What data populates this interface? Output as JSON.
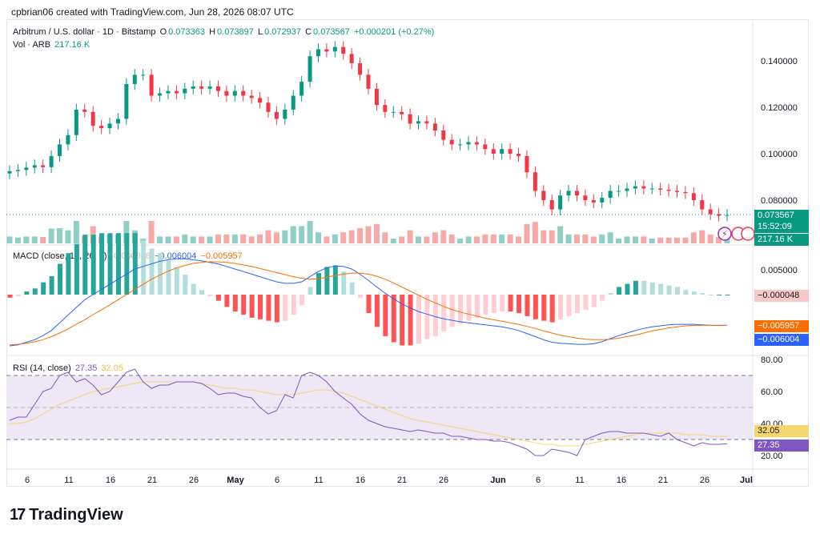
{
  "header": {
    "credit": "cpbrian06 created with TradingView.com, Jun 28, 2026 08:07 UTC"
  },
  "legend": {
    "symbol": "Arbitrum / U.S. dollar · 1D · Bitstamp",
    "open_label": "O",
    "open": "0.073363",
    "high_label": "H",
    "high": "0.073897",
    "low_label": "L",
    "low": "0.072937",
    "close_label": "C",
    "close": "0.073567",
    "change": "+0.000201 (+0.27%)",
    "vol_label": "Vol · ARB",
    "vol_value": "217.16 K"
  },
  "macd_legend": {
    "title": "MACD (close, 12, 26, 9)",
    "hist": "-0.000048",
    "macd": "−0.006004",
    "signal": "−0.005957"
  },
  "rsi_legend": {
    "title": "RSI (14, close)",
    "rsi": "27.35",
    "ma": "32.05"
  },
  "tags": {
    "price": "0.073567",
    "countdown": "15:52:09",
    "volume": "217.16 K",
    "macd_hist": "−0.000048",
    "macd_signal": "−0.005957",
    "macd_line": "−0.006004",
    "rsi_ma": "32.05",
    "rsi": "27.35"
  },
  "colors": {
    "up": "#089981",
    "down": "#f23645",
    "vol_up": "#8fcfc5",
    "vol_down": "#f7a9a7",
    "macd_line": "#2962ff",
    "signal_line": "#ff6d00",
    "rsi_line": "#7e57c2",
    "rsi_ma": "#f5d76e",
    "rsi_band": "#ede7f6"
  },
  "branding": {
    "logo": "17",
    "name": "TradingView"
  },
  "chart_data": {
    "type": "candlestick",
    "title": "Arbitrum / U.S. dollar · 1D · Bitstamp",
    "y_ticks": [
      "0.140000",
      "0.120000",
      "0.100000",
      "0.080000"
    ],
    "x_ticks": [
      "6",
      "11",
      "16",
      "21",
      "26",
      "May",
      "6",
      "11",
      "16",
      "21",
      "26",
      "Jun",
      "6",
      "11",
      "16",
      "21",
      "26",
      "Jul"
    ],
    "ohlc_close": [
      0.0925,
      0.093,
      0.094,
      0.095,
      0.0942,
      0.099,
      0.104,
      0.108,
      0.119,
      0.118,
      0.112,
      0.111,
      0.113,
      0.115,
      0.13,
      0.134,
      0.134,
      0.125,
      0.126,
      0.127,
      0.126,
      0.128,
      0.129,
      0.128,
      0.129,
      0.127,
      0.125,
      0.127,
      0.125,
      0.124,
      0.122,
      0.118,
      0.115,
      0.119,
      0.125,
      0.131,
      0.142,
      0.145,
      0.144,
      0.146,
      0.143,
      0.139,
      0.134,
      0.128,
      0.121,
      0.118,
      0.118,
      0.117,
      0.113,
      0.114,
      0.113,
      0.11,
      0.106,
      0.104,
      0.104,
      0.105,
      0.104,
      0.102,
      0.1,
      0.102,
      0.1,
      0.099,
      0.092,
      0.084,
      0.08,
      0.076,
      0.082,
      0.084,
      0.082,
      0.08,
      0.079,
      0.081,
      0.084,
      0.084,
      0.085,
      0.086,
      0.085,
      0.085,
      0.0845,
      0.084,
      0.0835,
      0.083,
      0.08,
      0.076,
      0.074,
      0.0733,
      0.0736
    ],
    "macd": [
      -0.01,
      -0.0098,
      -0.0093,
      -0.0088,
      -0.008,
      -0.007,
      -0.0055,
      -0.004,
      -0.0025,
      -0.001,
      0.0,
      0.001,
      0.002,
      0.003,
      0.004,
      0.005,
      0.0055,
      0.006,
      0.0065,
      0.0068,
      0.007,
      0.007,
      0.0068,
      0.0066,
      0.0063,
      0.006,
      0.0055,
      0.005,
      0.0045,
      0.004,
      0.0035,
      0.003,
      0.0025,
      0.0022,
      0.0022,
      0.0025,
      0.0035,
      0.0045,
      0.0052,
      0.0056,
      0.0055,
      0.005,
      0.004,
      0.0028,
      0.0015,
      0.0003,
      -0.0008,
      -0.0018,
      -0.0026,
      -0.0033,
      -0.0038,
      -0.0043,
      -0.0047,
      -0.005,
      -0.0053,
      -0.0055,
      -0.0057,
      -0.0059,
      -0.0061,
      -0.0063,
      -0.0066,
      -0.007,
      -0.0076,
      -0.0082,
      -0.0088,
      -0.0093,
      -0.0095,
      -0.0096,
      -0.0097,
      -0.0097,
      -0.0096,
      -0.0092,
      -0.0086,
      -0.008,
      -0.0075,
      -0.007,
      -0.0066,
      -0.0063,
      -0.0061,
      -0.0059,
      -0.0058,
      -0.0058,
      -0.0058,
      -0.0059,
      -0.006,
      -0.006,
      -0.006
    ],
    "signal": [
      -0.0098,
      -0.0097,
      -0.0095,
      -0.0092,
      -0.0088,
      -0.0082,
      -0.0075,
      -0.0067,
      -0.0058,
      -0.0049,
      -0.0039,
      -0.003,
      -0.002,
      -0.001,
      0.0,
      0.001,
      0.002,
      0.003,
      0.0038,
      0.0046,
      0.0052,
      0.0057,
      0.0061,
      0.0063,
      0.0064,
      0.0064,
      0.0063,
      0.0061,
      0.0058,
      0.0055,
      0.0051,
      0.0047,
      0.0043,
      0.0039,
      0.0035,
      0.0032,
      0.003,
      0.0031,
      0.0034,
      0.0037,
      0.004,
      0.0042,
      0.0042,
      0.004,
      0.0036,
      0.003,
      0.0023,
      0.0015,
      0.0007,
      -0.0001,
      -0.0009,
      -0.0016,
      -0.0023,
      -0.0029,
      -0.0034,
      -0.0038,
      -0.0042,
      -0.0046,
      -0.0049,
      -0.0052,
      -0.0055,
      -0.0058,
      -0.0062,
      -0.0066,
      -0.0071,
      -0.0075,
      -0.0079,
      -0.0082,
      -0.0085,
      -0.0087,
      -0.0088,
      -0.0088,
      -0.0087,
      -0.0085,
      -0.0082,
      -0.0079,
      -0.0075,
      -0.0071,
      -0.0068,
      -0.0065,
      -0.0063,
      -0.0061,
      -0.006,
      -0.006,
      -0.006,
      -0.006,
      -0.006
    ],
    "rsi_ticks": [
      "80.00",
      "60.00",
      "40.00",
      "20.00"
    ],
    "rsi": [
      42,
      44,
      44,
      52,
      60,
      62,
      70,
      72,
      66,
      68,
      64,
      58,
      60,
      66,
      72,
      74,
      66,
      62,
      64,
      64,
      66,
      66,
      66,
      65,
      62,
      58,
      59,
      59,
      57,
      56,
      50,
      46,
      48,
      58,
      56,
      70,
      72,
      70,
      66,
      60,
      56,
      52,
      46,
      42,
      40,
      38,
      37,
      36,
      35,
      36,
      35,
      34,
      34,
      32,
      32,
      31,
      30,
      30,
      29,
      29,
      28,
      26,
      24,
      20,
      20,
      24,
      23,
      22,
      20,
      30,
      32,
      34,
      35,
      35,
      34,
      34,
      34,
      33,
      32,
      34,
      30,
      28,
      26,
      28,
      27,
      27,
      27.35
    ],
    "rsi_ma": [
      40,
      40,
      41,
      43,
      46,
      49,
      52,
      54,
      56,
      58,
      60,
      61,
      62,
      63,
      64,
      65,
      66,
      66,
      66,
      66,
      66,
      66,
      66,
      65,
      64,
      63,
      62,
      62,
      61,
      61,
      60,
      59,
      58,
      58,
      58,
      59,
      60,
      61,
      61,
      60,
      59,
      57,
      55,
      53,
      51,
      49,
      47,
      45,
      43,
      42,
      41,
      40,
      39,
      38,
      37,
      36,
      35,
      34,
      33,
      32,
      31,
      30,
      29,
      28,
      27,
      27,
      26,
      26,
      26,
      27,
      28,
      29,
      30,
      31,
      32,
      33,
      34,
      34,
      34,
      34,
      34,
      33,
      33,
      33,
      32,
      32,
      32.05
    ]
  }
}
